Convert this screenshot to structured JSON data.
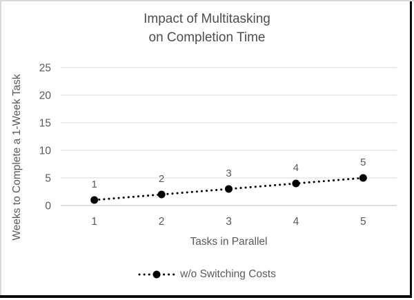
{
  "title": {
    "line1": "Impact of Multitasking",
    "line2": "on Completion Time"
  },
  "axes": {
    "y_title": "Weeks to Complete a 1-Week Task",
    "x_title": "Tasks in Parallel"
  },
  "legend": {
    "label": "w/o Switching Costs"
  },
  "colors": {
    "title": "#4d4d4d",
    "text": "#595959",
    "gridline": "#d9d9d9",
    "axis_line": "#c6c6c6",
    "series": "#000000",
    "frame_gray": "#d8d8d8",
    "frame_black": "#0a0a0a",
    "background": "#ffffff"
  },
  "chart_data": {
    "type": "line",
    "title": "Impact of Multitasking on Completion Time",
    "xlabel": "Tasks in Parallel",
    "ylabel": "Weeks to Complete a 1-Week Task",
    "x": [
      1,
      2,
      3,
      4,
      5
    ],
    "xticks": [
      1,
      2,
      3,
      4,
      5
    ],
    "yticks": [
      0,
      5,
      10,
      15,
      20,
      25
    ],
    "ylim": [
      0,
      25
    ],
    "grid": "horizontal",
    "legend_position": "bottom",
    "series": [
      {
        "name": "w/o Switching Costs",
        "values": [
          1,
          2,
          3,
          4,
          5
        ],
        "color": "#000000",
        "line_style": "dotted",
        "marker": "circle",
        "data_labels": [
          1,
          2,
          3,
          4,
          5
        ]
      }
    ]
  }
}
